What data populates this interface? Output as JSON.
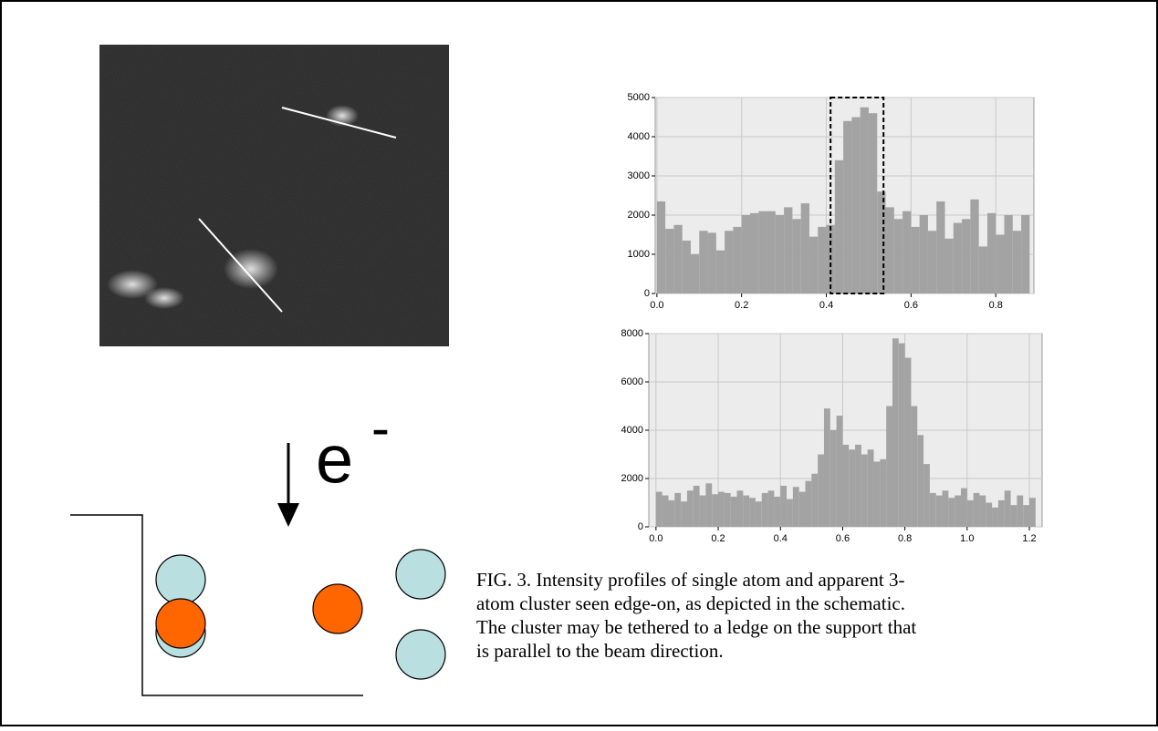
{
  "chart_data": [
    {
      "type": "histogram",
      "color": "#a3a3a3",
      "background": "#ececec",
      "grid": true,
      "xlim": [
        -0.004,
        0.89
      ],
      "ylim": [
        0,
        5000
      ],
      "xticks": [
        {
          "value": 0,
          "label": "0.0"
        },
        {
          "value": 0.2,
          "label": "0.2"
        },
        {
          "value": 0.4,
          "label": "0.4"
        },
        {
          "value": 0.6,
          "label": "0.6"
        },
        {
          "value": 0.8,
          "label": "0.8"
        }
      ],
      "yticks": [
        0,
        1000,
        2000,
        3000,
        4000,
        5000
      ],
      "highlight": [
        0.41,
        0.535
      ],
      "bins": [
        0,
        0.02,
        0.04,
        0.06,
        0.08,
        0.1,
        0.12,
        0.14,
        0.16,
        0.18,
        0.2,
        0.22,
        0.24,
        0.26,
        0.28,
        0.3,
        0.32,
        0.34,
        0.36,
        0.38,
        0.4,
        0.42,
        0.44,
        0.46,
        0.48,
        0.5,
        0.52,
        0.54,
        0.56,
        0.58,
        0.6,
        0.62,
        0.64,
        0.66,
        0.68,
        0.7,
        0.72,
        0.74,
        0.76,
        0.78,
        0.8,
        0.82,
        0.84,
        0.86,
        0.88
      ],
      "values": [
        2350,
        1650,
        1750,
        1350,
        1000,
        1600,
        1550,
        1100,
        1600,
        1700,
        2000,
        2050,
        2100,
        2100,
        2000,
        2200,
        1900,
        2300,
        1450,
        1700,
        1750,
        3400,
        4400,
        4500,
        4750,
        4600,
        2600,
        2200,
        1900,
        2100,
        1700,
        2000,
        1600,
        2350,
        1400,
        1800,
        1900,
        2400,
        1200,
        2050,
        1500,
        2000,
        1600,
        2000
      ]
    },
    {
      "type": "histogram",
      "color": "#a3a3a3",
      "background": "#ececec",
      "grid": true,
      "xlim": [
        -0.023,
        1.241
      ],
      "ylim": [
        0,
        8000
      ],
      "xticks": [
        {
          "value": 0,
          "label": "0.0"
        },
        {
          "value": 0.2,
          "label": "0.2"
        },
        {
          "value": 0.4,
          "label": "0.4"
        },
        {
          "value": 0.6,
          "label": "0.6"
        },
        {
          "value": 0.8,
          "label": "0.8"
        },
        {
          "value": 1,
          "label": "1.0"
        },
        {
          "value": 1.2,
          "label": "1.2"
        }
      ],
      "yticks": [
        0,
        2000,
        4000,
        6000,
        8000
      ],
      "bins": [
        0,
        0.02,
        0.04,
        0.06,
        0.08,
        0.1,
        0.12,
        0.14,
        0.16,
        0.18,
        0.2,
        0.22,
        0.24,
        0.26,
        0.28,
        0.3,
        0.32,
        0.34,
        0.36,
        0.38,
        0.4,
        0.42,
        0.44,
        0.46,
        0.48,
        0.5,
        0.52,
        0.54,
        0.56,
        0.58,
        0.6,
        0.62,
        0.64,
        0.66,
        0.68,
        0.7,
        0.72,
        0.74,
        0.76,
        0.78,
        0.8,
        0.82,
        0.84,
        0.86,
        0.88,
        0.9,
        0.92,
        0.94,
        0.96,
        0.98,
        1,
        1.02,
        1.04,
        1.06,
        1.08,
        1.1,
        1.12,
        1.14,
        1.16,
        1.18,
        1.2,
        1.22
      ],
      "values": [
        1450,
        1300,
        1100,
        1400,
        1050,
        1500,
        1700,
        1300,
        1800,
        1350,
        1450,
        1400,
        1250,
        1500,
        1300,
        1200,
        1050,
        1400,
        1500,
        1250,
        1700,
        1150,
        1650,
        1450,
        1900,
        2200,
        3000,
        4900,
        4000,
        4600,
        3400,
        3200,
        3400,
        3000,
        3200,
        2700,
        2800,
        5000,
        7800,
        7600,
        7000,
        5000,
        3800,
        2600,
        1400,
        1300,
        1500,
        1200,
        1300,
        1600,
        1100,
        1400,
        1300,
        1000,
        800,
        1100,
        1500,
        900,
        1300,
        900,
        1200
      ]
    }
  ],
  "beam_label": {
    "text": "e",
    "superscript": "-"
  },
  "caption": [
    "FIG. 3. Intensity profiles of single atom and apparent 3-",
    "atom cluster seen edge-on, as depicted in the schematic.",
    "The cluster may be tethered to a ledge on the support that",
    "is parallel to the beam direction."
  ]
}
